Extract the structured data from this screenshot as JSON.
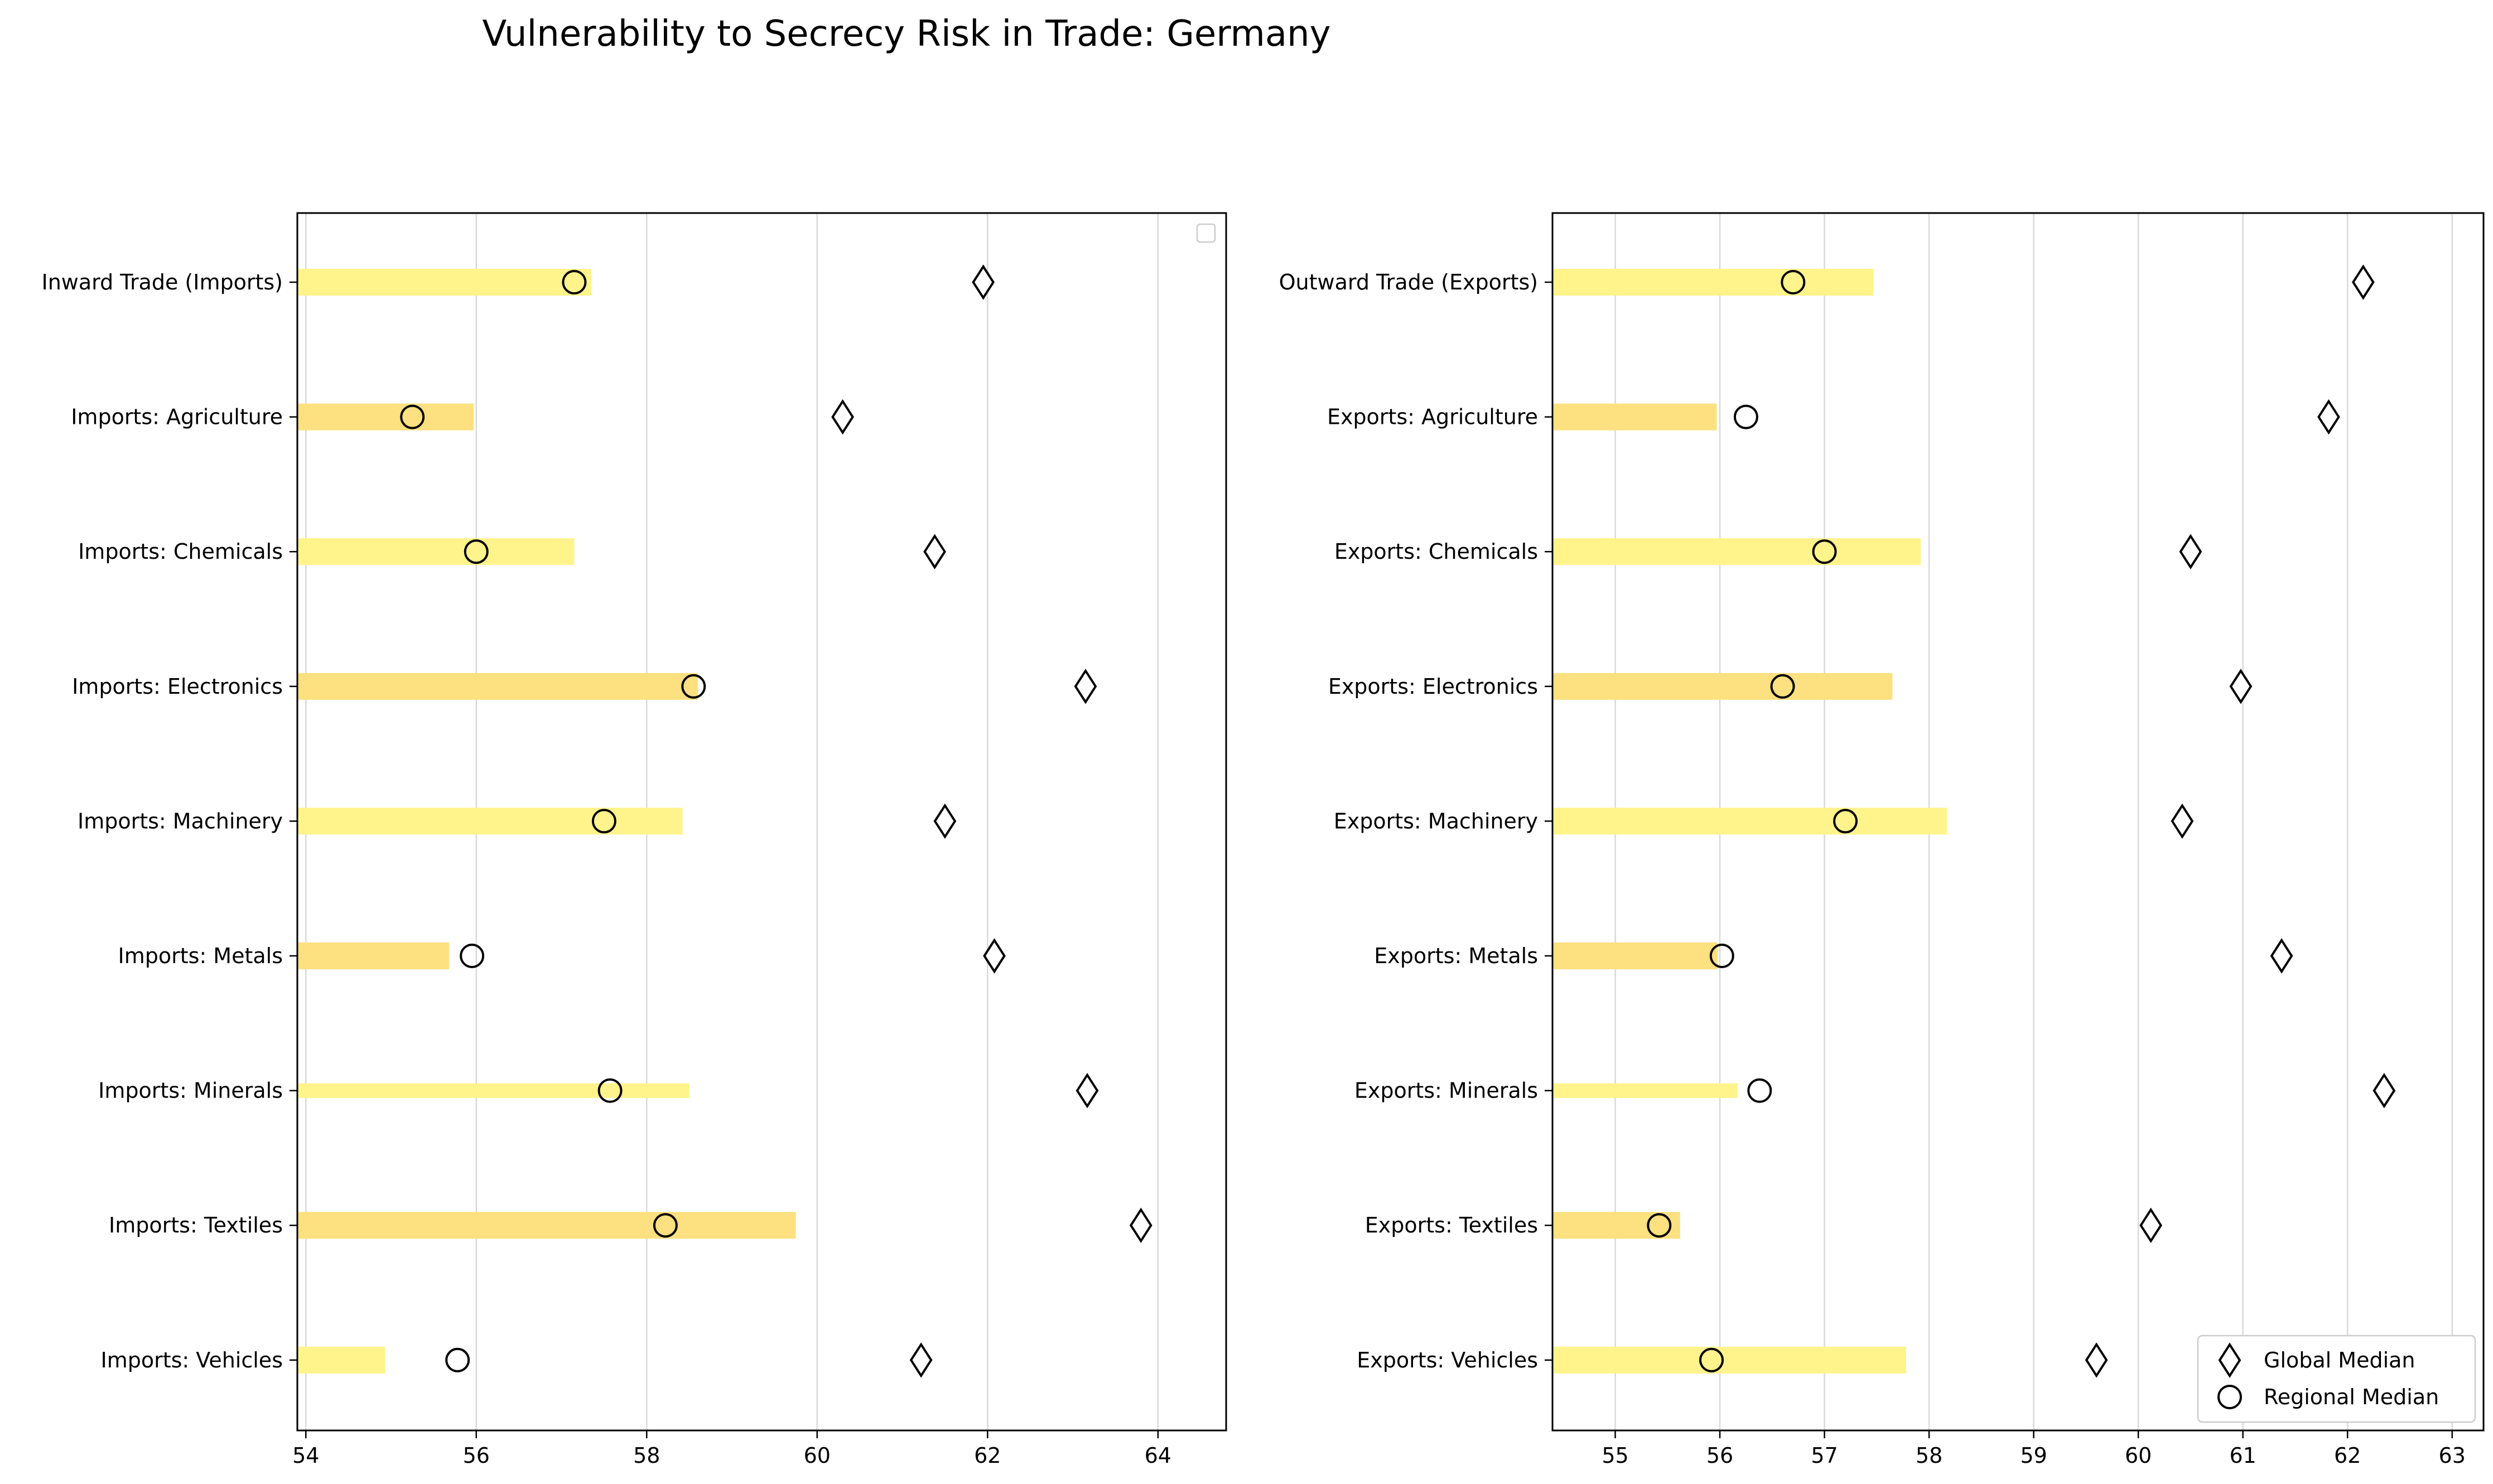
{
  "chart_data": {
    "title": "Vulnerability to Secrecy Risk in Trade: Germany",
    "colors": {
      "bar_light": "#fff38c",
      "bar_dark": "#fde07f",
      "grid": "#d9d9d9",
      "marker_stroke": "#000000"
    },
    "legend": {
      "placement": "lower-right of right panel",
      "entries": [
        {
          "label": "Global Median",
          "marker": "diamond"
        },
        {
          "label": "Regional Median",
          "marker": "circle"
        }
      ]
    },
    "panels": [
      {
        "type": "bar",
        "orientation": "horizontal",
        "xlim": [
          53.9,
          64.8
        ],
        "xticks": [
          54,
          56,
          58,
          60,
          62,
          64
        ],
        "grid": "vertical",
        "empty_legend_box": true,
        "categories": [
          "Inward Trade (Imports)",
          "Imports: Agriculture",
          "Imports: Chemicals",
          "Imports: Electronics",
          "Imports: Machinery",
          "Imports: Metals",
          "Imports: Minerals",
          "Imports: Textiles",
          "Imports: Vehicles"
        ],
        "values": [
          57.35,
          55.97,
          57.15,
          58.6,
          58.42,
          55.68,
          58.5,
          59.75,
          54.93
        ],
        "bar_thickness": [
          1.0,
          1.0,
          1.0,
          1.0,
          1.0,
          1.0,
          0.55,
          1.0,
          1.0
        ],
        "bar_color": [
          "light",
          "dark",
          "light",
          "dark",
          "light",
          "dark",
          "light",
          "dark",
          "light"
        ],
        "global_median": [
          61.95,
          60.3,
          61.38,
          63.15,
          61.5,
          62.08,
          63.17,
          63.8,
          61.22
        ],
        "regional_median": [
          57.15,
          55.25,
          56.0,
          58.55,
          57.5,
          55.95,
          57.57,
          58.22,
          55.78
        ]
      },
      {
        "type": "bar",
        "orientation": "horizontal",
        "xlim": [
          54.4,
          63.3
        ],
        "xticks": [
          55,
          56,
          57,
          58,
          59,
          60,
          61,
          62,
          63
        ],
        "grid": "vertical",
        "empty_legend_box": false,
        "categories": [
          "Outward Trade (Exports)",
          "Exports: Agriculture",
          "Exports: Chemicals",
          "Exports: Electronics",
          "Exports: Machinery",
          "Exports: Metals",
          "Exports: Minerals",
          "Exports: Textiles",
          "Exports: Vehicles"
        ],
        "values": [
          57.47,
          55.97,
          57.92,
          57.65,
          58.17,
          55.98,
          56.17,
          55.62,
          57.78
        ],
        "bar_thickness": [
          1.0,
          1.0,
          1.0,
          1.0,
          1.0,
          1.0,
          0.55,
          1.0,
          1.0
        ],
        "bar_color": [
          "light",
          "dark",
          "light",
          "dark",
          "light",
          "dark",
          "light",
          "dark",
          "light"
        ],
        "global_median": [
          62.15,
          61.82,
          60.5,
          60.98,
          60.42,
          61.37,
          62.35,
          60.12,
          59.6
        ],
        "regional_median": [
          56.7,
          56.25,
          57.0,
          56.6,
          57.2,
          56.02,
          56.38,
          55.42,
          55.92
        ]
      }
    ]
  }
}
